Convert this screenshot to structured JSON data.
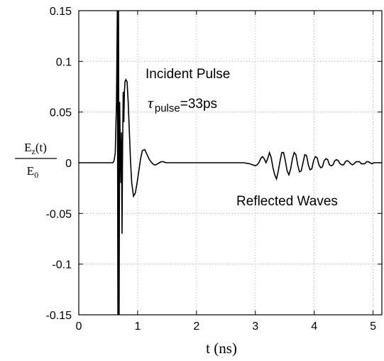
{
  "chart_data": {
    "type": "line",
    "xlabel": "t  (ns)",
    "ylabel": {
      "numerator": "E",
      "numerator_sub": "z",
      "numerator_suffix": "(t)",
      "denominator": "E",
      "denominator_sub": "0"
    },
    "xlim": [
      0,
      5.15
    ],
    "ylim": [
      -0.15,
      0.15
    ],
    "xticks": [
      0,
      1,
      2,
      3,
      4,
      5
    ],
    "xtick_labels": [
      "0",
      "1",
      "2",
      "3",
      "4",
      "5"
    ],
    "yticks": [
      -0.15,
      -0.1,
      -0.05,
      0,
      0.05,
      0.1,
      0.15
    ],
    "ytick_labels": [
      "-0.15",
      "-0.1",
      "-0.05",
      "0",
      "0.05",
      "0.1",
      "0.15"
    ],
    "grid": "dotted",
    "annotations": {
      "incident": {
        "line1": "Incident Pulse",
        "tau": "τ",
        "tau_sub": "pulse",
        "tau_value": "=33ps"
      },
      "reflected": "Reflected Waves"
    },
    "series": [
      {
        "x": [
          0,
          0.58,
          0.6,
          0.62,
          0.64,
          0.655,
          0.665,
          0.675,
          0.685,
          0.695,
          0.705,
          0.715,
          0.725,
          0.735,
          0.745,
          0.755,
          0.765,
          0.775,
          0.785,
          0.8,
          0.82,
          0.84,
          0.86,
          0.88,
          0.9,
          0.93,
          0.96,
          0.99,
          1.02,
          1.05,
          1.08,
          1.12,
          1.16,
          1.2,
          1.24,
          1.28,
          1.31,
          1.34,
          1.37,
          1.4,
          1.44,
          1.48,
          1.52,
          1.56,
          1.6,
          1.7,
          1.8,
          2.0,
          2.2,
          2.5,
          2.8,
          2.9,
          2.95,
          3.0,
          3.03,
          3.06,
          3.09,
          3.12,
          3.15,
          3.18,
          3.21,
          3.24,
          3.27,
          3.3,
          3.33,
          3.36,
          3.39,
          3.42,
          3.45,
          3.48,
          3.51,
          3.54,
          3.57,
          3.6,
          3.63,
          3.66,
          3.69,
          3.72,
          3.75,
          3.78,
          3.81,
          3.84,
          3.87,
          3.9,
          3.93,
          3.96,
          3.99,
          4.02,
          4.05,
          4.08,
          4.11,
          4.14,
          4.17,
          4.2,
          4.23,
          4.26,
          4.29,
          4.32,
          4.35,
          4.38,
          4.41,
          4.44,
          4.47,
          4.5,
          4.53,
          4.56,
          4.59,
          4.62,
          4.65,
          4.68,
          4.71,
          4.74,
          4.77,
          4.8,
          4.83,
          4.86,
          4.89,
          4.92,
          4.95,
          4.98,
          5.01,
          5.04,
          5.07,
          5.1,
          5.15
        ],
        "y": [
          0,
          0,
          0.002,
          0.01,
          0.06,
          0.15,
          -0.15,
          0.15,
          -0.15,
          0.06,
          0.01,
          -0.02,
          0.03,
          -0.07,
          0.02,
          0.07,
          0.04,
          0.07,
          0.08,
          0.082,
          0.08,
          0.06,
          0.03,
          0.0,
          -0.02,
          -0.033,
          -0.03,
          -0.02,
          -0.008,
          0.004,
          0.012,
          0.013,
          0.008,
          0.003,
          0.0,
          -0.002,
          -0.002,
          -0.001,
          0.0,
          0.001,
          0.001,
          0.0,
          0.0,
          0.0,
          0.0,
          0.0,
          0.0,
          0.0,
          0.0,
          0.0,
          0.0,
          -0.001,
          -0.002,
          -0.003,
          -0.002,
          0.0,
          0.004,
          0.006,
          0.004,
          0.0,
          0.004,
          0.01,
          0.005,
          -0.005,
          -0.012,
          -0.016,
          -0.008,
          0.002,
          0.01,
          0.01,
          0.002,
          -0.008,
          -0.012,
          -0.006,
          0.004,
          0.01,
          0.008,
          -0.002,
          -0.009,
          -0.008,
          0.0,
          0.008,
          0.007,
          -0.002,
          -0.007,
          -0.006,
          0.002,
          0.006,
          0.005,
          -0.002,
          -0.005,
          -0.004,
          0.002,
          0.004,
          0.003,
          -0.002,
          -0.003,
          -0.002,
          0.002,
          0.003,
          0.002,
          -0.001,
          -0.002,
          -0.002,
          0.001,
          0.002,
          0.001,
          -0.001,
          -0.002,
          -0.001,
          0.001,
          0.001,
          0.001,
          -0.001,
          -0.001,
          -0.001,
          0.001,
          0.001,
          0.0,
          -0.001,
          0.0,
          0.0,
          0.0,
          0.0,
          0.0
        ]
      }
    ]
  }
}
